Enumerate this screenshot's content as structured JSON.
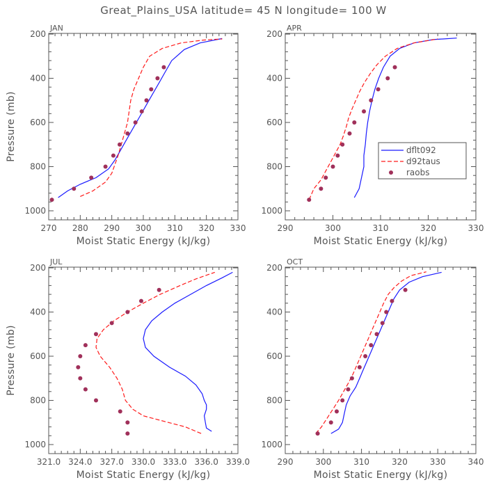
{
  "title": "Great_Plains_USA   latitude= 45 N longitude= 100 W",
  "colors": {
    "dflt092": "#1a1aff",
    "d92taus": "#ff1a1a",
    "raobs": "#a0305a",
    "axis": "#555555"
  },
  "legend": {
    "panel": 1,
    "items": [
      {
        "name": "dflt092",
        "style": "solid-line"
      },
      {
        "name": "d92taus",
        "style": "dashed-line"
      },
      {
        "name": "raobs",
        "style": "marker"
      }
    ]
  },
  "chart_data": [
    {
      "type": "line",
      "label": "JAN",
      "xlabel": "Moist Static Energy (kJ/kg)",
      "ylabel": "Pressure (mb)",
      "xlim": [
        270,
        330
      ],
      "xticks": [
        "270",
        "280",
        "290",
        "300",
        "310",
        "320",
        "330"
      ],
      "xtick_values": [
        270,
        280,
        290,
        300,
        310,
        320,
        330
      ],
      "ylim": [
        200,
        1000
      ],
      "yticks": [
        "200",
        "400",
        "600",
        "800",
        "1000"
      ],
      "ytick_values": [
        200,
        400,
        600,
        800,
        1000
      ],
      "y_inverted": true,
      "series": [
        {
          "name": "dflt092",
          "points": [
            [
              273,
              940
            ],
            [
              276,
              910
            ],
            [
              280,
              880
            ],
            [
              285,
              850
            ],
            [
              289,
              810
            ],
            [
              291,
              770
            ],
            [
              293,
              720
            ],
            [
              295,
              670
            ],
            [
              297,
              620
            ],
            [
              299,
              570
            ],
            [
              301,
              520
            ],
            [
              303,
              470
            ],
            [
              305,
              420
            ],
            [
              307,
              370
            ],
            [
              309,
              320
            ],
            [
              313,
              270
            ],
            [
              318,
              240
            ],
            [
              325,
              220
            ]
          ]
        },
        {
          "name": "d92taus",
          "points": [
            [
              280,
              935
            ],
            [
              284,
              910
            ],
            [
              288,
              870
            ],
            [
              290,
              830
            ],
            [
              291,
              790
            ],
            [
              292,
              750
            ],
            [
              293,
              700
            ],
            [
              294,
              650
            ],
            [
              295,
              600
            ],
            [
              295.5,
              550
            ],
            [
              296,
              500
            ],
            [
              297,
              450
            ],
            [
              298.5,
              400
            ],
            [
              300,
              350
            ],
            [
              302,
              300
            ],
            [
              306,
              265
            ],
            [
              312,
              240
            ],
            [
              319,
              227
            ],
            [
              325,
              222
            ]
          ]
        },
        {
          "name": "raobs",
          "points": [
            [
              271,
              950
            ],
            [
              278,
              900
            ],
            [
              283.5,
              850
            ],
            [
              288,
              800
            ],
            [
              290.5,
              750
            ],
            [
              292.5,
              700
            ],
            [
              295,
              650
            ],
            [
              297.5,
              600
            ],
            [
              299.5,
              550
            ],
            [
              301,
              500
            ],
            [
              302.5,
              450
            ],
            [
              304.5,
              400
            ],
            [
              306.5,
              350
            ]
          ]
        }
      ]
    },
    {
      "type": "line",
      "label": "APR",
      "xlabel": "Moist Static Energy (kJ/kg)",
      "ylabel": "",
      "xlim": [
        290,
        330
      ],
      "xticks": [
        "290",
        "300",
        "310",
        "320",
        "330"
      ],
      "xtick_values": [
        290,
        300,
        310,
        320,
        330
      ],
      "ylim": [
        200,
        1000
      ],
      "yticks": [
        "200",
        "400",
        "600",
        "800",
        "1000"
      ],
      "ytick_values": [
        200,
        400,
        600,
        800,
        1000
      ],
      "y_inverted": true,
      "series": [
        {
          "name": "dflt092",
          "points": [
            [
              304.5,
              940
            ],
            [
              305.5,
              900
            ],
            [
              306,
              850
            ],
            [
              306.5,
              800
            ],
            [
              306.5,
              750
            ],
            [
              306.8,
              700
            ],
            [
              307,
              650
            ],
            [
              307.3,
              600
            ],
            [
              307.7,
              550
            ],
            [
              308.2,
              500
            ],
            [
              308.8,
              450
            ],
            [
              309.6,
              400
            ],
            [
              310.6,
              350
            ],
            [
              312,
              300
            ],
            [
              314,
              265
            ],
            [
              317,
              240
            ],
            [
              321,
              225
            ],
            [
              326,
              218
            ]
          ]
        },
        {
          "name": "d92taus",
          "points": [
            [
              295,
              950
            ],
            [
              296,
              900
            ],
            [
              297.5,
              860
            ],
            [
              298.5,
              820
            ],
            [
              299.5,
              780
            ],
            [
              300.5,
              740
            ],
            [
              301.5,
              700
            ],
            [
              302.2,
              660
            ],
            [
              302.8,
              620
            ],
            [
              303.3,
              580
            ],
            [
              304,
              540
            ],
            [
              304.8,
              500
            ],
            [
              305.6,
              460
            ],
            [
              306.6,
              420
            ],
            [
              307.8,
              380
            ],
            [
              309.2,
              340
            ],
            [
              311,
              300
            ],
            [
              313.5,
              265
            ],
            [
              317,
              240
            ],
            [
              322,
              222
            ]
          ]
        },
        {
          "name": "raobs",
          "points": [
            [
              295,
              950
            ],
            [
              297.5,
              900
            ],
            [
              298.5,
              850
            ],
            [
              300,
              800
            ],
            [
              301,
              750
            ],
            [
              302,
              700
            ],
            [
              303.5,
              650
            ],
            [
              304.5,
              600
            ],
            [
              306.5,
              550
            ],
            [
              308,
              500
            ],
            [
              309.5,
              450
            ],
            [
              311.5,
              400
            ],
            [
              313,
              350
            ]
          ]
        }
      ]
    },
    {
      "type": "line",
      "label": "JUL",
      "xlabel": "Moist Static Energy (kJ/kg)",
      "ylabel": "Pressure (mb)",
      "xlim": [
        321,
        339
      ],
      "xticks": [
        "321.0",
        "324.0",
        "327.0",
        "330.0",
        "333.0",
        "336.0",
        "339.0"
      ],
      "xtick_values": [
        321,
        324,
        327,
        330,
        333,
        336,
        339
      ],
      "ylim": [
        200,
        1000
      ],
      "yticks": [
        "200",
        "400",
        "600",
        "800",
        "1000"
      ],
      "ytick_values": [
        200,
        400,
        600,
        800,
        1000
      ],
      "y_inverted": true,
      "series": [
        {
          "name": "dflt092",
          "points": [
            [
              336.5,
              940
            ],
            [
              336,
              925
            ],
            [
              335.9,
              900
            ],
            [
              335.8,
              870
            ],
            [
              336,
              840
            ],
            [
              336,
              820
            ],
            [
              335.8,
              800
            ],
            [
              335.6,
              770
            ],
            [
              335,
              730
            ],
            [
              334,
              690
            ],
            [
              332.5,
              650
            ],
            [
              331,
              600
            ],
            [
              330.2,
              560
            ],
            [
              330,
              520
            ],
            [
              330.2,
              480
            ],
            [
              330.8,
              440
            ],
            [
              331.8,
              400
            ],
            [
              333,
              360
            ],
            [
              334.5,
              320
            ],
            [
              336,
              280
            ],
            [
              337.5,
              245
            ],
            [
              338.5,
              220
            ]
          ]
        },
        {
          "name": "d92taus",
          "points": [
            [
              335.5,
              950
            ],
            [
              334,
              920
            ],
            [
              332,
              895
            ],
            [
              330,
              870
            ],
            [
              329,
              840
            ],
            [
              328.3,
              800
            ],
            [
              328,
              750
            ],
            [
              327.5,
              700
            ],
            [
              326.8,
              650
            ],
            [
              325.9,
              600
            ],
            [
              325.5,
              560
            ],
            [
              325.6,
              520
            ],
            [
              326.2,
              480
            ],
            [
              327.2,
              440
            ],
            [
              328.5,
              400
            ],
            [
              330,
              360
            ],
            [
              331.6,
              320
            ],
            [
              333.5,
              280
            ],
            [
              335,
              250
            ],
            [
              336.8,
              220
            ]
          ]
        },
        {
          "name": "raobs",
          "points": [
            [
              328.5,
              950
            ],
            [
              328.5,
              900
            ],
            [
              327.8,
              850
            ],
            [
              325.5,
              800
            ],
            [
              324.5,
              750
            ],
            [
              324,
              700
            ],
            [
              323.8,
              650
            ],
            [
              324,
              600
            ],
            [
              324.5,
              550
            ],
            [
              325.5,
              500
            ],
            [
              327,
              450
            ],
            [
              328.5,
              400
            ],
            [
              329.8,
              350
            ],
            [
              331.5,
              300
            ]
          ]
        }
      ]
    },
    {
      "type": "line",
      "label": "OCT",
      "xlabel": "Moist Static Energy (kJ/kg)",
      "ylabel": "",
      "xlim": [
        290,
        340
      ],
      "xticks": [
        "290",
        "300",
        "310",
        "320",
        "330",
        "340"
      ],
      "xtick_values": [
        290,
        300,
        310,
        320,
        330,
        340
      ],
      "ylim": [
        200,
        1000
      ],
      "yticks": [
        "200",
        "400",
        "600",
        "800",
        "1000"
      ],
      "ytick_values": [
        200,
        400,
        600,
        800,
        1000
      ],
      "y_inverted": true,
      "series": [
        {
          "name": "dflt092",
          "points": [
            [
              302,
              950
            ],
            [
              304,
              930
            ],
            [
              305,
              900
            ],
            [
              305.5,
              860
            ],
            [
              306,
              820
            ],
            [
              307,
              780
            ],
            [
              308.5,
              740
            ],
            [
              309.5,
              700
            ],
            [
              310.5,
              660
            ],
            [
              311.5,
              620
            ],
            [
              312.5,
              580
            ],
            [
              313.5,
              540
            ],
            [
              314.5,
              500
            ],
            [
              315.5,
              460
            ],
            [
              316.5,
              420
            ],
            [
              317.5,
              380
            ],
            [
              318.5,
              340
            ],
            [
              320,
              300
            ],
            [
              322.5,
              265
            ],
            [
              326,
              240
            ],
            [
              331,
              220
            ]
          ]
        },
        {
          "name": "d92taus",
          "points": [
            [
              298,
              950
            ],
            [
              299.5,
              920
            ],
            [
              301,
              880
            ],
            [
              302.5,
              840
            ],
            [
              304,
              800
            ],
            [
              305.3,
              760
            ],
            [
              306.6,
              720
            ],
            [
              307.8,
              680
            ],
            [
              308.8,
              640
            ],
            [
              309.8,
              600
            ],
            [
              310.8,
              560
            ],
            [
              311.8,
              520
            ],
            [
              312.8,
              480
            ],
            [
              313.8,
              440
            ],
            [
              314.8,
              400
            ],
            [
              315.8,
              360
            ],
            [
              317,
              320
            ],
            [
              318.5,
              290
            ],
            [
              320.5,
              260
            ],
            [
              323,
              235
            ],
            [
              327,
              218
            ]
          ]
        },
        {
          "name": "raobs",
          "points": [
            [
              298.5,
              950
            ],
            [
              302,
              900
            ],
            [
              303.5,
              850
            ],
            [
              305,
              800
            ],
            [
              306.5,
              750
            ],
            [
              307.5,
              700
            ],
            [
              309.5,
              650
            ],
            [
              311,
              600
            ],
            [
              312.5,
              550
            ],
            [
              314,
              500
            ],
            [
              315.5,
              450
            ],
            [
              316.5,
              400
            ],
            [
              318,
              350
            ],
            [
              321.5,
              300
            ]
          ]
        }
      ]
    }
  ]
}
